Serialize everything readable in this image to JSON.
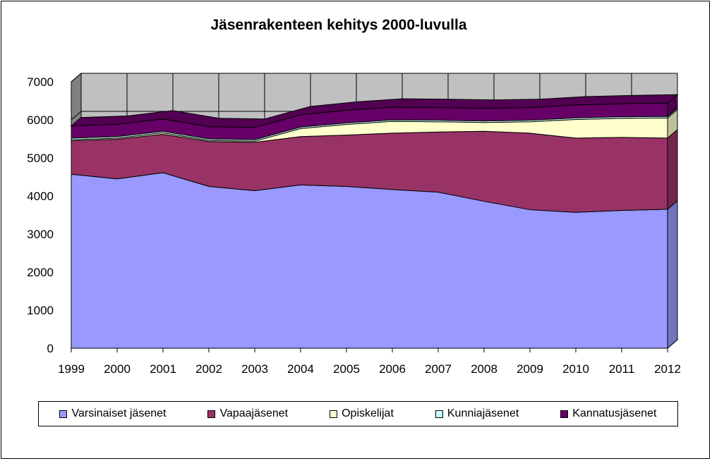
{
  "chart_data": {
    "type": "area",
    "title": "Jäsenrakenteen kehitys 2000-luvulla",
    "categories": [
      "1999",
      "2000",
      "2001",
      "2002",
      "2003",
      "2004",
      "2005",
      "2006",
      "2007",
      "2008",
      "2009",
      "2010",
      "2011",
      "2012"
    ],
    "ylim": [
      0,
      7000
    ],
    "yticks": [
      0,
      1000,
      2000,
      3000,
      4000,
      5000,
      6000,
      7000
    ],
    "stacked": true,
    "grid": true,
    "legend_position": "bottom",
    "series": [
      {
        "name": "Varsinaiset jäsenet",
        "color": "#9999ff",
        "values": [
          4570,
          4450,
          4610,
          4250,
          4140,
          4290,
          4250,
          4170,
          4100,
          3860,
          3640,
          3570,
          3620,
          3650
        ]
      },
      {
        "name": "Vapaajäsenet",
        "color": "#993366",
        "values": [
          880,
          1040,
          1010,
          1180,
          1270,
          1270,
          1350,
          1480,
          1580,
          1840,
          2010,
          1950,
          1920,
          1870
        ]
      },
      {
        "name": "Opiskelijat",
        "color": "#ffffcc",
        "values": [
          30,
          30,
          40,
          30,
          30,
          210,
          280,
          310,
          270,
          230,
          300,
          490,
          500,
          530
        ]
      },
      {
        "name": "Kunniajäsenet",
        "color": "#ccffff",
        "values": [
          40,
          40,
          40,
          40,
          40,
          40,
          40,
          40,
          40,
          40,
          40,
          40,
          40,
          40
        ]
      },
      {
        "name": "Kannatusjäsenet",
        "color": "#660066",
        "values": [
          320,
          320,
          320,
          320,
          320,
          320,
          330,
          330,
          330,
          330,
          330,
          340,
          340,
          350
        ]
      }
    ]
  }
}
